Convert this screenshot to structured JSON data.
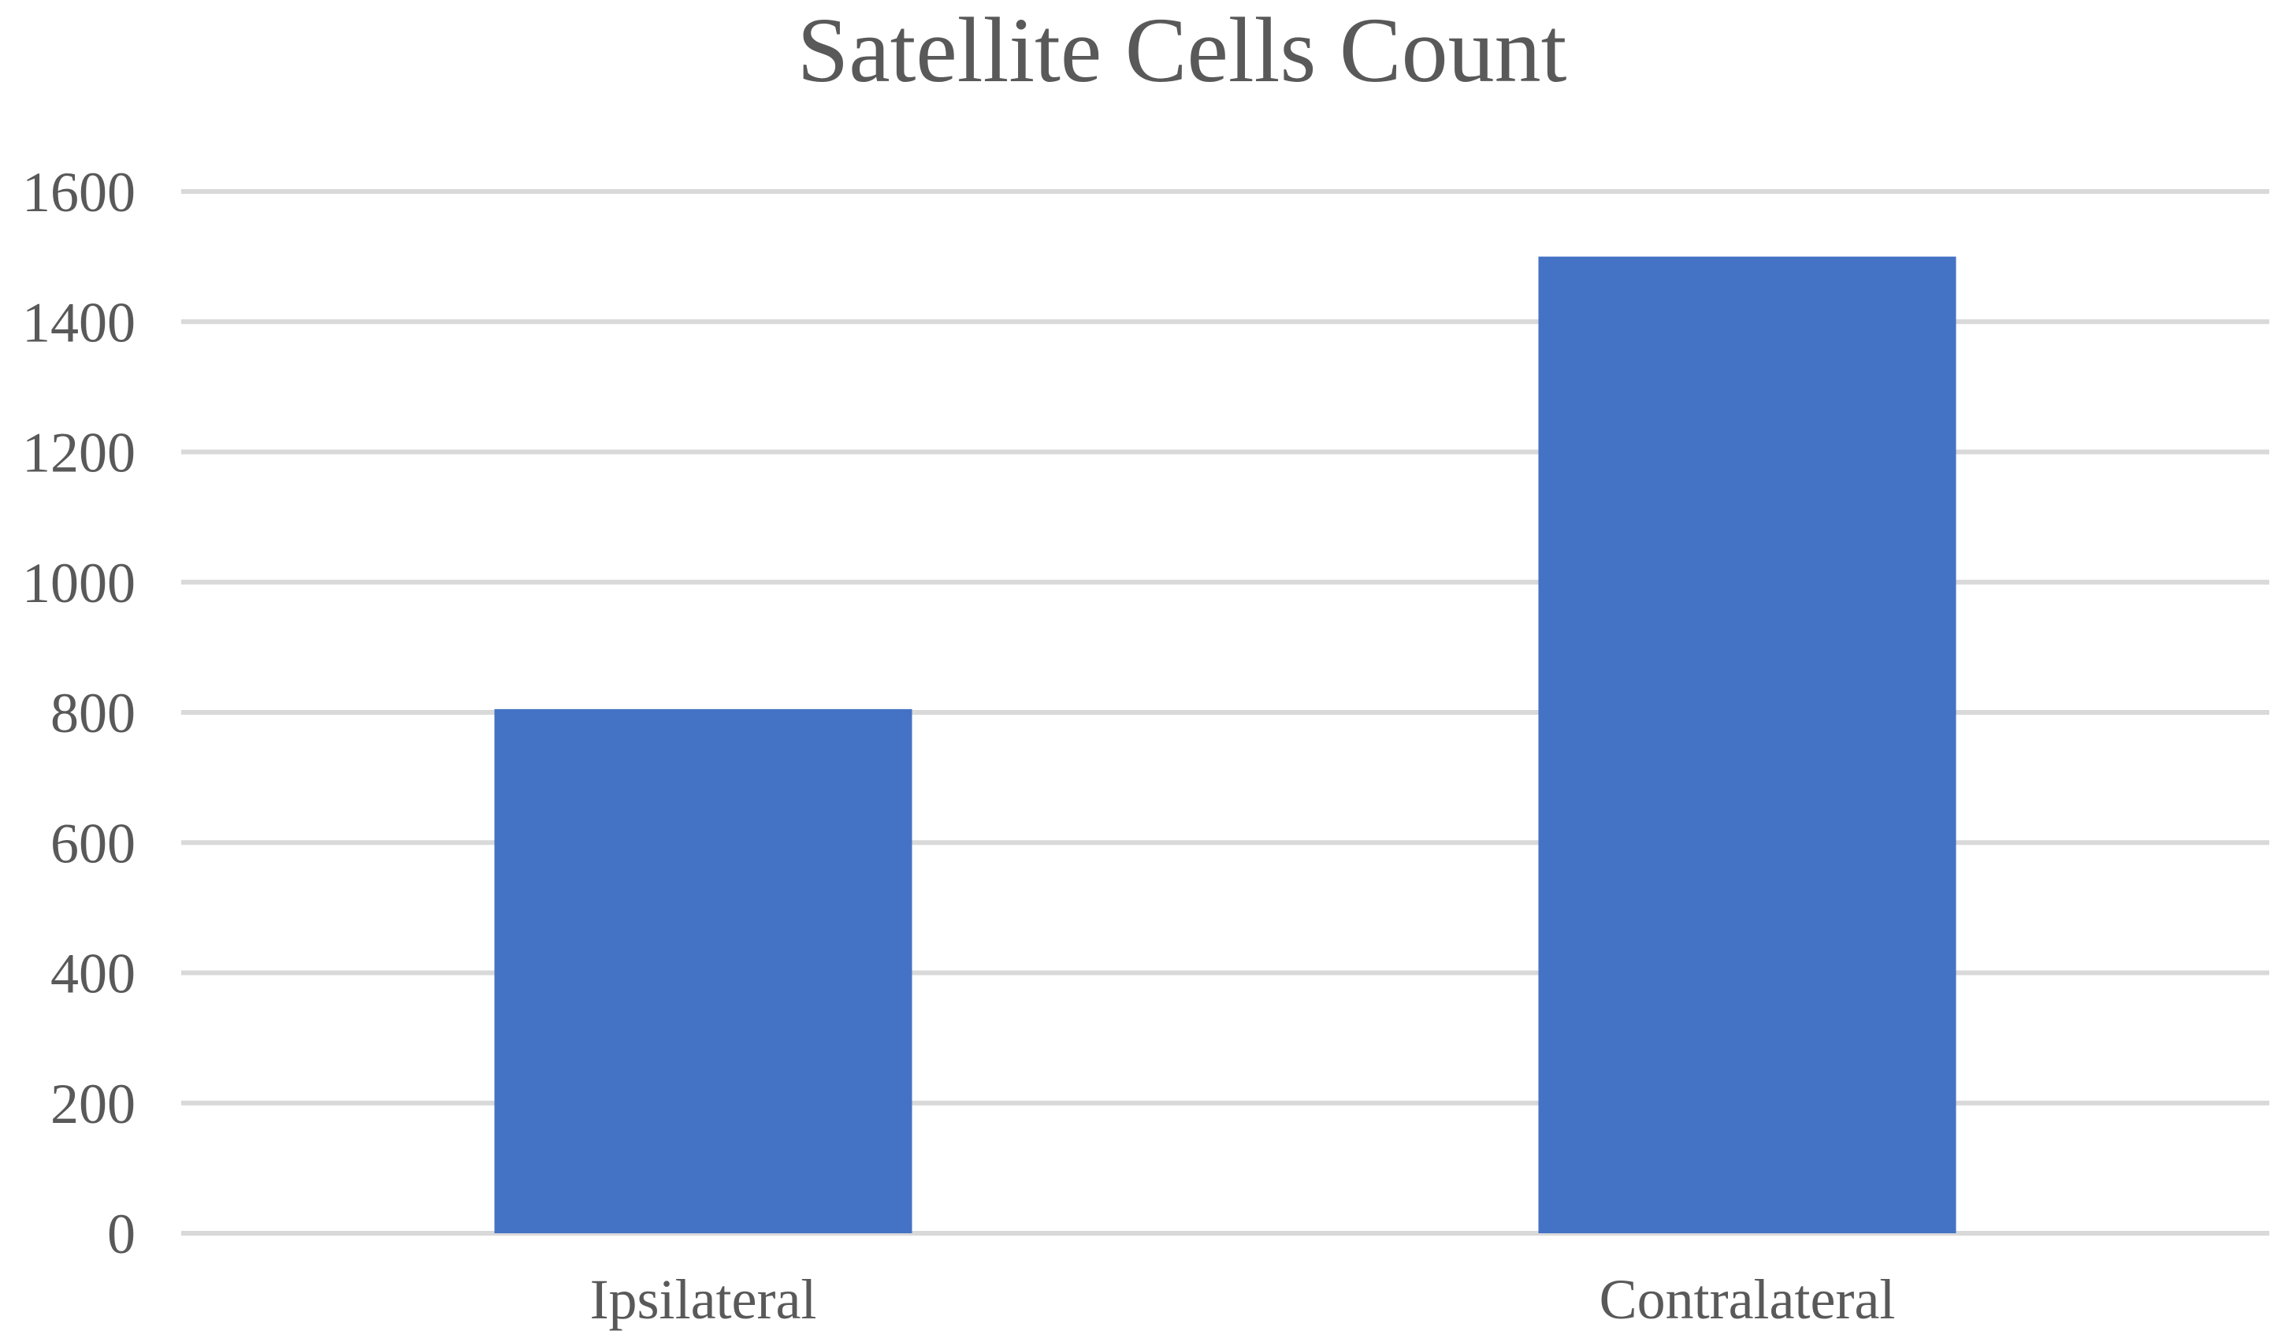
{
  "chart_data": {
    "type": "bar",
    "title": "Satellite Cells Count",
    "xlabel": "",
    "ylabel": "",
    "categories": [
      "Ipsilateral",
      "Contralateral"
    ],
    "values": [
      805,
      1500
    ],
    "ylim": [
      0,
      1600
    ],
    "yticks": [
      0,
      200,
      400,
      600,
      800,
      1000,
      1200,
      1400,
      1600
    ],
    "grid": true,
    "legend": "none",
    "colors": {
      "bar": "#4472c4",
      "grid": "#d9d9d9",
      "text": "#595959"
    }
  }
}
